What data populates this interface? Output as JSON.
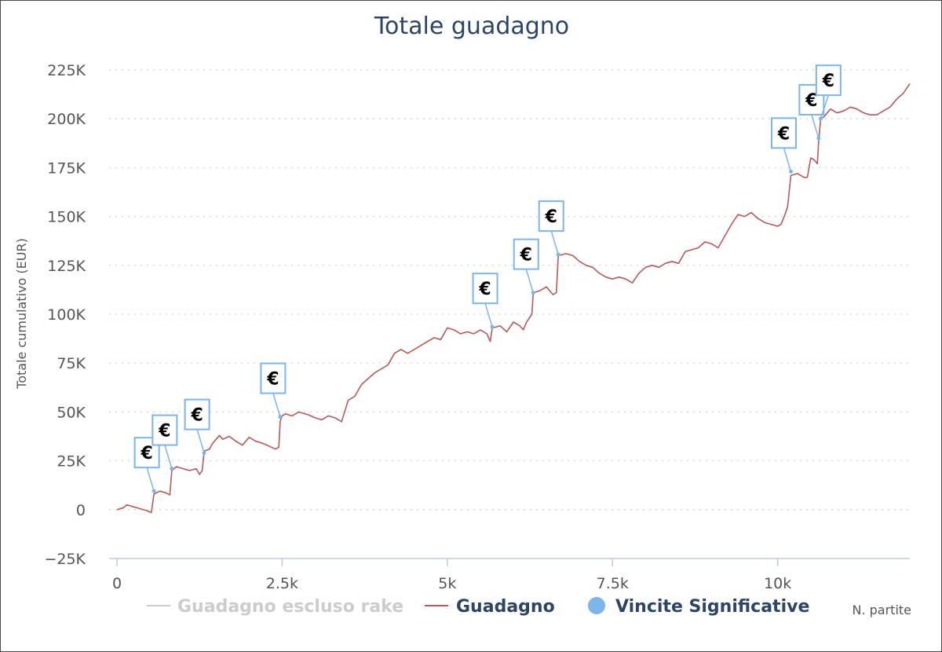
{
  "chart_data": {
    "type": "line",
    "title": "Totale guadagno",
    "ylabel": "Totale cumulativo (EUR)",
    "xlabel": "N. partite",
    "xlim": [
      0,
      12000
    ],
    "ylim": [
      -25000,
      225000
    ],
    "x_ticks": [
      0,
      2500,
      5000,
      7500,
      10000
    ],
    "x_tick_labels": [
      "0",
      "2.5k",
      "5k",
      "7.5k",
      "10k"
    ],
    "y_ticks": [
      -25000,
      0,
      25000,
      50000,
      75000,
      100000,
      125000,
      150000,
      175000,
      200000,
      225000
    ],
    "y_tick_labels": [
      "−25K",
      "0",
      "25K",
      "50K",
      "75K",
      "100K",
      "125K",
      "150K",
      "175K",
      "200K",
      "225K"
    ],
    "grid": "horizontal",
    "legend_position": "bottom",
    "series": [
      {
        "name": "Guadagno escluso rake",
        "color": "#cccccc",
        "visible": false,
        "points": []
      },
      {
        "name": "Guadagno",
        "color": "#b55b5b",
        "visible": true,
        "points": [
          [
            0,
            0
          ],
          [
            100,
            1000
          ],
          [
            150,
            2500
          ],
          [
            250,
            1500
          ],
          [
            350,
            500
          ],
          [
            450,
            -500
          ],
          [
            520,
            -1500
          ],
          [
            560,
            8000
          ],
          [
            650,
            9500
          ],
          [
            750,
            8500
          ],
          [
            800,
            7500
          ],
          [
            830,
            20000
          ],
          [
            900,
            22000
          ],
          [
            1000,
            21000
          ],
          [
            1100,
            20000
          ],
          [
            1200,
            21000
          ],
          [
            1250,
            18000
          ],
          [
            1290,
            20000
          ],
          [
            1320,
            30000
          ],
          [
            1400,
            31000
          ],
          [
            1450,
            34000
          ],
          [
            1550,
            38000
          ],
          [
            1600,
            36000
          ],
          [
            1700,
            37500
          ],
          [
            1800,
            35000
          ],
          [
            1900,
            33000
          ],
          [
            2000,
            37000
          ],
          [
            2100,
            35000
          ],
          [
            2200,
            34000
          ],
          [
            2300,
            32500
          ],
          [
            2400,
            31000
          ],
          [
            2450,
            32000
          ],
          [
            2470,
            45000
          ],
          [
            2500,
            48000
          ],
          [
            2550,
            49000
          ],
          [
            2650,
            48000
          ],
          [
            2750,
            50000
          ],
          [
            2900,
            48500
          ],
          [
            3000,
            47000
          ],
          [
            3100,
            46000
          ],
          [
            3200,
            48000
          ],
          [
            3300,
            47000
          ],
          [
            3400,
            45000
          ],
          [
            3500,
            56000
          ],
          [
            3600,
            58000
          ],
          [
            3700,
            64000
          ],
          [
            3800,
            67000
          ],
          [
            3900,
            70000
          ],
          [
            4000,
            72000
          ],
          [
            4100,
            74000
          ],
          [
            4200,
            80000
          ],
          [
            4300,
            82000
          ],
          [
            4400,
            80000
          ],
          [
            4500,
            82000
          ],
          [
            4600,
            84000
          ],
          [
            4700,
            86000
          ],
          [
            4800,
            88000
          ],
          [
            4900,
            87000
          ],
          [
            5000,
            93000
          ],
          [
            5100,
            92000
          ],
          [
            5200,
            90000
          ],
          [
            5300,
            91000
          ],
          [
            5400,
            90000
          ],
          [
            5500,
            92000
          ],
          [
            5600,
            90000
          ],
          [
            5650,
            86000
          ],
          [
            5680,
            93000
          ],
          [
            5800,
            94000
          ],
          [
            5900,
            91000
          ],
          [
            6000,
            96000
          ],
          [
            6100,
            94000
          ],
          [
            6150,
            92000
          ],
          [
            6200,
            96000
          ],
          [
            6280,
            100000
          ],
          [
            6300,
            111000
          ],
          [
            6400,
            112000
          ],
          [
            6500,
            114000
          ],
          [
            6600,
            110000
          ],
          [
            6650,
            111000
          ],
          [
            6680,
            130000
          ],
          [
            6800,
            131000
          ],
          [
            6900,
            130000
          ],
          [
            7000,
            127000
          ],
          [
            7100,
            125000
          ],
          [
            7200,
            124000
          ],
          [
            7300,
            121000
          ],
          [
            7400,
            119000
          ],
          [
            7500,
            118000
          ],
          [
            7600,
            119000
          ],
          [
            7700,
            118000
          ],
          [
            7800,
            116000
          ],
          [
            7900,
            121000
          ],
          [
            8000,
            124000
          ],
          [
            8100,
            125000
          ],
          [
            8200,
            124000
          ],
          [
            8300,
            126000
          ],
          [
            8400,
            127000
          ],
          [
            8500,
            126000
          ],
          [
            8600,
            132000
          ],
          [
            8700,
            133000
          ],
          [
            8800,
            134000
          ],
          [
            8900,
            137000
          ],
          [
            9000,
            136000
          ],
          [
            9100,
            134000
          ],
          [
            9200,
            140000
          ],
          [
            9300,
            146000
          ],
          [
            9400,
            151000
          ],
          [
            9500,
            150000
          ],
          [
            9600,
            152000
          ],
          [
            9700,
            149000
          ],
          [
            9800,
            147000
          ],
          [
            9900,
            146000
          ],
          [
            10000,
            145000
          ],
          [
            10050,
            146000
          ],
          [
            10100,
            150000
          ],
          [
            10150,
            155000
          ],
          [
            10200,
            171000
          ],
          [
            10300,
            172000
          ],
          [
            10400,
            170000
          ],
          [
            10450,
            170000
          ],
          [
            10500,
            180000
          ],
          [
            10550,
            179000
          ],
          [
            10600,
            177000
          ],
          [
            10620,
            188000
          ],
          [
            10650,
            200000
          ],
          [
            10700,
            201000
          ],
          [
            10750,
            203000
          ],
          [
            10800,
            205000
          ],
          [
            10900,
            203000
          ],
          [
            11000,
            204000
          ],
          [
            11100,
            206000
          ],
          [
            11200,
            205000
          ],
          [
            11300,
            203000
          ],
          [
            11400,
            202000
          ],
          [
            11500,
            202000
          ],
          [
            11600,
            204000
          ],
          [
            11700,
            206000
          ],
          [
            11800,
            210000
          ],
          [
            11900,
            213000
          ],
          [
            12000,
            218000
          ]
        ]
      },
      {
        "name": "Vincite Significative",
        "color": "#7cb5ec",
        "marker_label": "€",
        "points": [
          [
            560,
            9500
          ],
          [
            830,
            21000
          ],
          [
            1320,
            29000
          ],
          [
            2470,
            47500
          ],
          [
            5680,
            93500
          ],
          [
            6300,
            111000
          ],
          [
            6680,
            130500
          ],
          [
            10200,
            173000
          ],
          [
            10620,
            190000
          ],
          [
            10650,
            200000
          ]
        ]
      }
    ]
  }
}
